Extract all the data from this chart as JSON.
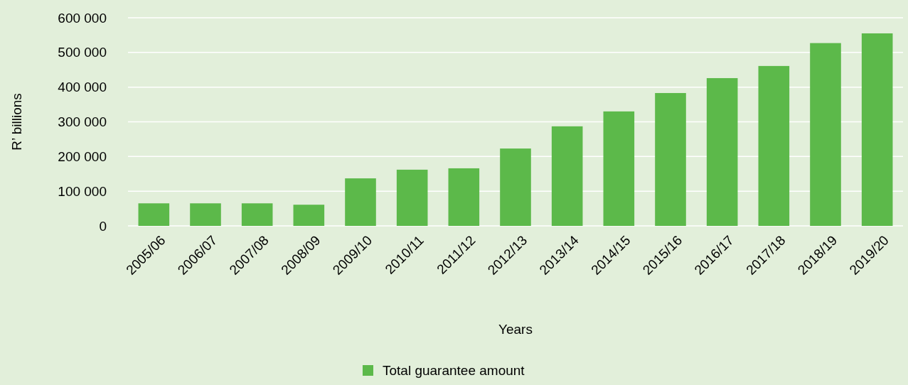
{
  "chart_data": {
    "type": "bar",
    "xlabel": "Years",
    "ylabel": "R’ billions",
    "categories": [
      "2005/06",
      "2006/07",
      "2007/08",
      "2008/09",
      "2009/10",
      "2010/11",
      "2011/12",
      "2012/13",
      "2013/14",
      "2014/15",
      "2015/16",
      "2016/17",
      "2017/18",
      "2018/19",
      "2019/20"
    ],
    "series": [
      {
        "name": "Total guarantee amount",
        "color": "#5cb94a",
        "values": [
          65000,
          65000,
          65000,
          61000,
          137000,
          162000,
          166000,
          223000,
          287000,
          330000,
          383000,
          426000,
          461000,
          527000,
          555000
        ]
      }
    ],
    "ylim": [
      0,
      600000
    ],
    "yticks": [
      {
        "value": 0,
        "label": "0"
      },
      {
        "value": 100000,
        "label": "100 000"
      },
      {
        "value": 200000,
        "label": "200 000"
      },
      {
        "value": 300000,
        "label": "300 000"
      },
      {
        "value": 400000,
        "label": "400 000"
      },
      {
        "value": 500000,
        "label": "500 000"
      },
      {
        "value": 600000,
        "label": "600 000"
      }
    ],
    "grid": "y",
    "legend": "bottom"
  }
}
